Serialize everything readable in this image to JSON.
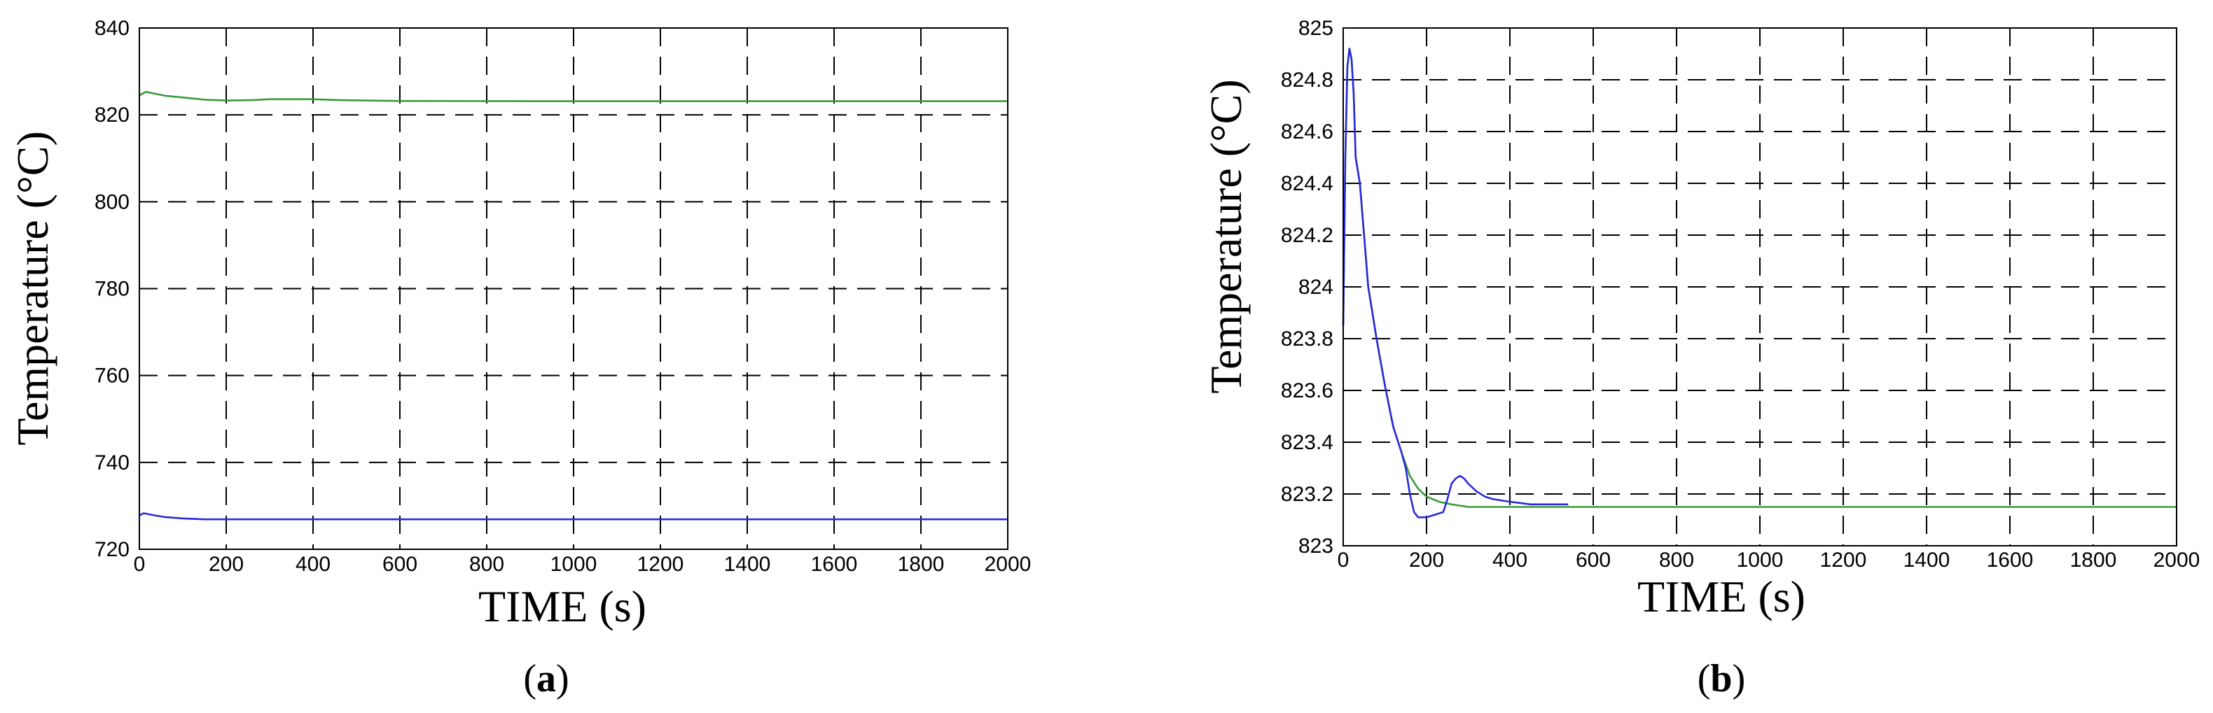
{
  "colors": {
    "series_green": "#3a9a3a",
    "series_blue": "#2a2ad8",
    "grid": "#000000",
    "background": "#ffffff"
  },
  "chart_data": [
    {
      "type": "line",
      "panel_label": "a",
      "xlabel": "TIME (s)",
      "ylabel": "Temperature (°C)",
      "xlim": [
        0,
        2000
      ],
      "ylim": [
        720,
        840
      ],
      "xticks": [
        0,
        200,
        400,
        600,
        800,
        1000,
        1200,
        1400,
        1600,
        1800,
        2000
      ],
      "yticks": [
        720,
        740,
        760,
        780,
        800,
        820,
        840
      ],
      "xtick_labels": [
        "0",
        "200",
        "400",
        "600",
        "800",
        "1000",
        "1200",
        "1400",
        "1600",
        "1800",
        "2000"
      ],
      "ytick_labels": [
        "720",
        "740",
        "760",
        "780",
        "800",
        "820",
        "840"
      ],
      "grid": true,
      "series": [
        {
          "color": "#3a9a3a",
          "x": [
            0,
            15,
            30,
            60,
            100,
            150,
            200,
            260,
            300,
            400,
            460,
            600,
            1000,
            1500,
            2000
          ],
          "y": [
            824.5,
            825.3,
            825.0,
            824.4,
            824.0,
            823.5,
            823.3,
            823.4,
            823.6,
            823.6,
            823.4,
            823.2,
            823.15,
            823.15,
            823.15
          ]
        },
        {
          "color": "#2a2ad8",
          "x": [
            0,
            10,
            30,
            60,
            100,
            150,
            200,
            500,
            1000,
            1500,
            2000
          ],
          "y": [
            727.8,
            728.3,
            727.9,
            727.4,
            727.1,
            726.9,
            726.9,
            726.9,
            726.9,
            726.9,
            726.9
          ]
        }
      ]
    },
    {
      "type": "line",
      "panel_label": "b",
      "xlabel": "TIME (s)",
      "ylabel": "Temperature (°C)",
      "xlim": [
        0,
        2000
      ],
      "ylim": [
        823,
        825
      ],
      "xticks": [
        0,
        200,
        400,
        600,
        800,
        1000,
        1200,
        1400,
        1600,
        1800,
        2000
      ],
      "yticks": [
        823,
        823.2,
        823.4,
        823.6,
        823.8,
        824,
        824.2,
        824.4,
        824.6,
        824.8,
        825
      ],
      "xtick_labels": [
        "0",
        "200",
        "400",
        "600",
        "800",
        "1000",
        "1200",
        "1400",
        "1600",
        "1800",
        "2000"
      ],
      "ytick_labels": [
        "823",
        "823.2",
        "823.4",
        "823.6",
        "823.8",
        "824",
        "824.2",
        "824.4",
        "824.6",
        "824.8",
        "825"
      ],
      "grid": true,
      "series": [
        {
          "color": "#3a9a3a",
          "x": [
            0,
            5,
            10,
            15,
            20,
            25,
            30,
            40,
            50,
            60,
            70,
            80,
            100,
            120,
            140,
            160,
            180,
            200,
            230,
            260,
            300,
            350,
            400,
            500,
            600,
            800,
            1000,
            1500,
            2000
          ],
          "y": [
            823.85,
            824.5,
            824.85,
            824.92,
            824.88,
            824.75,
            824.5,
            824.4,
            824.2,
            824.0,
            823.9,
            823.8,
            823.62,
            823.46,
            823.36,
            823.27,
            823.22,
            823.19,
            823.17,
            823.16,
            823.15,
            823.15,
            823.15,
            823.15,
            823.15,
            823.15,
            823.15,
            823.15,
            823.15
          ]
        },
        {
          "color": "#2a2ad8",
          "x": [
            0,
            5,
            10,
            15,
            20,
            25,
            30,
            40,
            50,
            60,
            70,
            80,
            100,
            120,
            140,
            150,
            160,
            170,
            180,
            200,
            220,
            240,
            250,
            260,
            270,
            280,
            290,
            300,
            320,
            340,
            360,
            400,
            450,
            500,
            540
          ],
          "y": [
            823.85,
            824.5,
            824.85,
            824.92,
            824.88,
            824.75,
            824.5,
            824.4,
            824.2,
            824.0,
            823.9,
            823.8,
            823.62,
            823.46,
            823.36,
            823.3,
            823.2,
            823.13,
            823.11,
            823.11,
            823.12,
            823.13,
            823.18,
            823.24,
            823.26,
            823.27,
            823.26,
            823.24,
            823.21,
            823.19,
            823.18,
            823.17,
            823.16,
            823.16,
            823.16
          ]
        }
      ]
    }
  ]
}
